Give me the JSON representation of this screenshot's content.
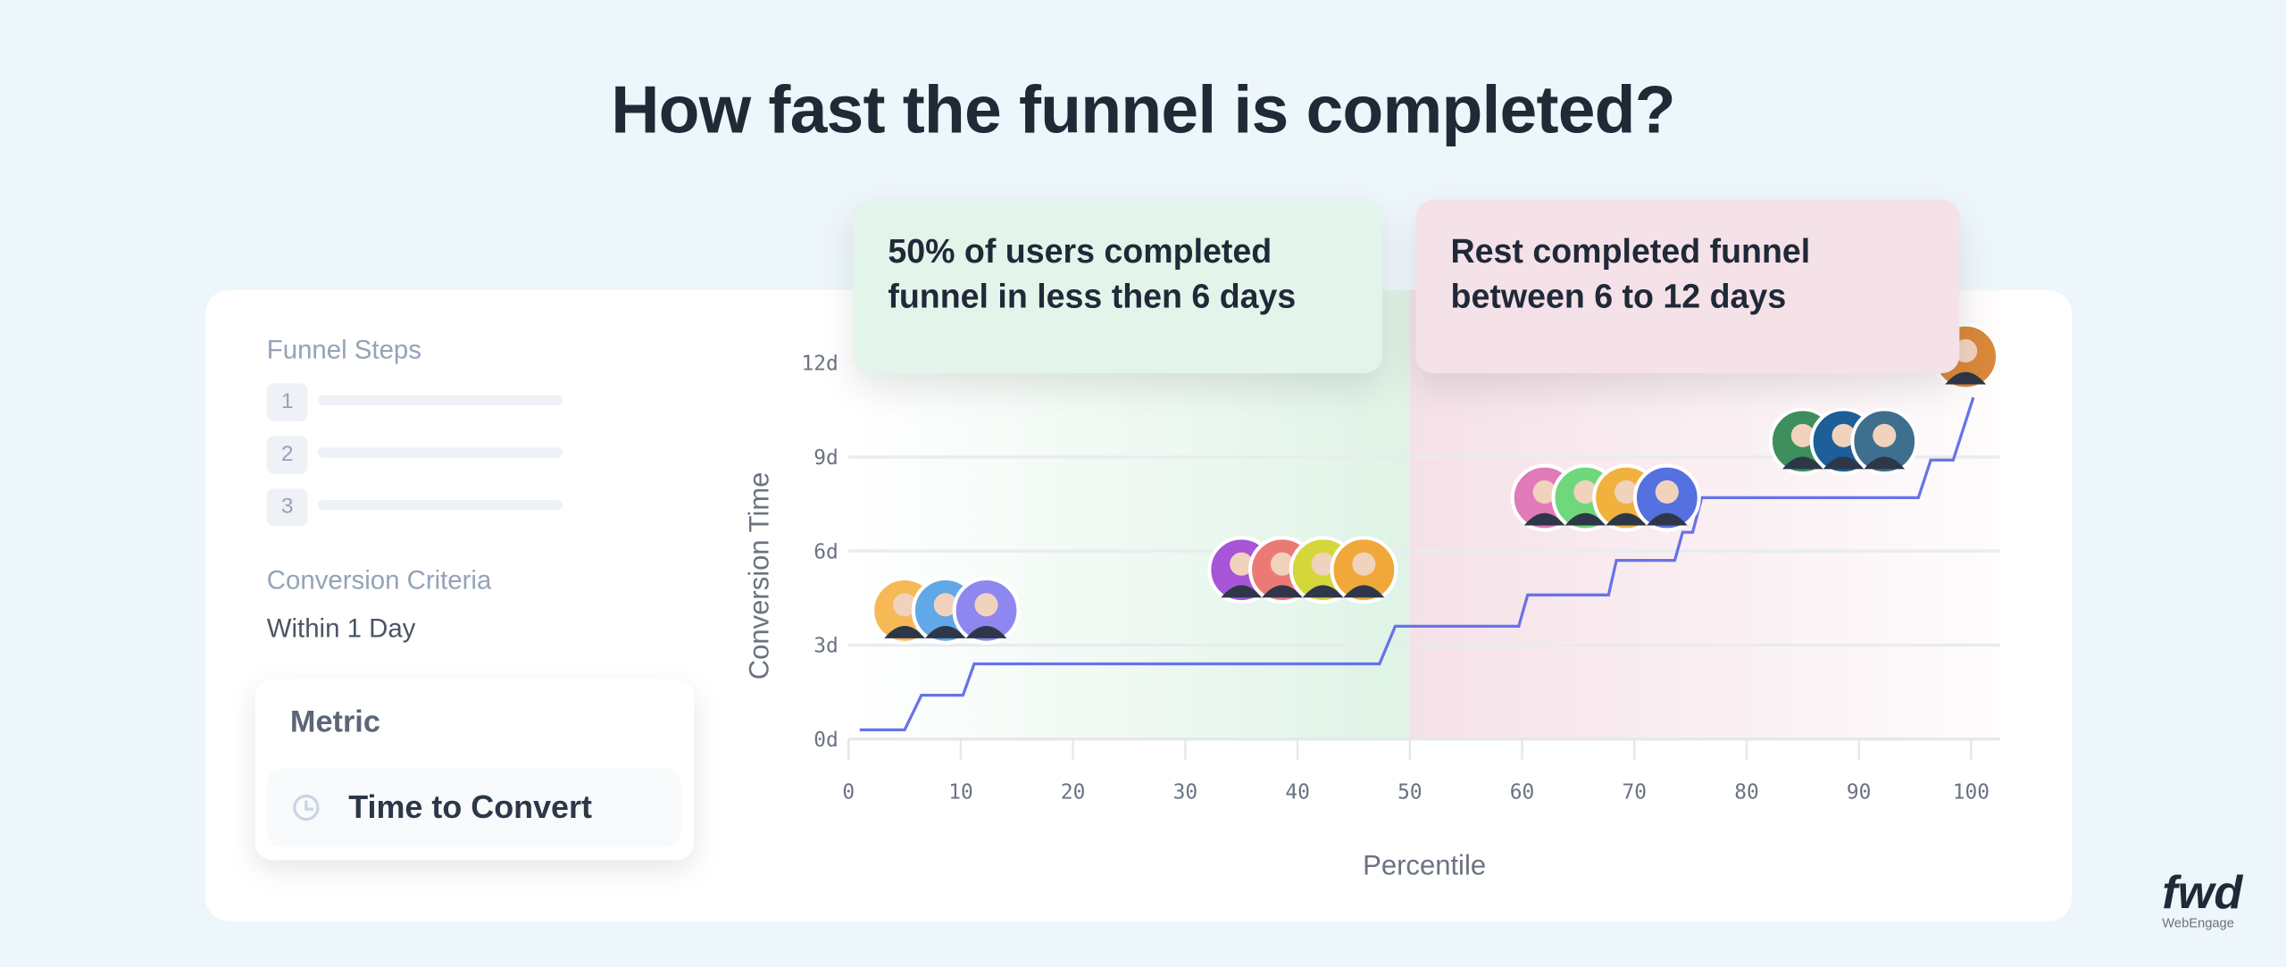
{
  "title": "How fast the funnel is completed?",
  "callouts": [
    {
      "line1": "50% of users completed",
      "line2": "funnel in less then 6 days",
      "color": "#e3f4ea"
    },
    {
      "line1": "Rest completed funnel",
      "line2": "between 6 to 12 days",
      "color": "#f5e1e8"
    }
  ],
  "sidebar": {
    "funnel_steps_label": "Funnel Steps",
    "steps": [
      "1",
      "2",
      "3"
    ],
    "criteria_label": "Conversion Criteria",
    "criteria_value": "Within 1 Day",
    "metric_label": "Metric",
    "metric_value": "Time to Convert",
    "metric_icon": "clock-icon"
  },
  "chart_data": {
    "type": "line",
    "step": true,
    "xlabel": "Percentile",
    "ylabel": "Conversion Time",
    "xlim": [
      0,
      100
    ],
    "ylim": [
      0,
      12
    ],
    "xticks": [
      "0",
      "10",
      "20",
      "30",
      "40",
      "50",
      "60",
      "70",
      "80",
      "90",
      "100"
    ],
    "yticks": [
      "0d",
      "3d",
      "6d",
      "9d",
      "12d"
    ],
    "grid": "horizontal",
    "line_color": "#6773e8",
    "regions": [
      {
        "from": 0,
        "to": 50,
        "color": "#dff3e6"
      },
      {
        "from": 50,
        "to": 100,
        "color": "#f5e1e8"
      }
    ],
    "series": [
      {
        "points": [
          [
            1,
            0.3
          ],
          [
            5,
            0.3
          ],
          [
            6.5,
            1.4
          ],
          [
            10.2,
            1.4
          ],
          [
            11.2,
            2.4
          ],
          [
            47.3,
            2.4
          ],
          [
            48.7,
            3.6
          ],
          [
            59.7,
            3.6
          ],
          [
            60.5,
            4.6
          ],
          [
            67.7,
            4.6
          ],
          [
            68.4,
            5.7
          ],
          [
            73.6,
            5.7
          ],
          [
            74.3,
            6.6
          ],
          [
            75.2,
            6.6
          ],
          [
            76,
            7.7
          ],
          [
            95.3,
            7.7
          ],
          [
            96.4,
            8.9
          ],
          [
            98.4,
            8.9
          ],
          [
            100.2,
            10.9
          ]
        ]
      }
    ],
    "avatar_groups": [
      {
        "x": 5,
        "y": 4.1,
        "colors": [
          "#f7b955",
          "#60a8e8",
          "#8f87f0"
        ]
      },
      {
        "x": 35,
        "y": 5.4,
        "colors": [
          "#a855d8",
          "#ec7a74",
          "#d4d63a",
          "#f0a83a"
        ]
      },
      {
        "x": 62,
        "y": 7.7,
        "colors": [
          "#e07ab8",
          "#6fd87a",
          "#f0b23c",
          "#5570e0"
        ]
      },
      {
        "x": 85,
        "y": 9.5,
        "colors": [
          "#3f8f5e",
          "#1c5f99",
          "#3f6f8f"
        ]
      },
      {
        "x": 99.5,
        "y": 12.2,
        "colors": [
          "#d9883a"
        ]
      }
    ]
  },
  "logo": {
    "text": "fwd",
    "subtext": "WebEngage"
  }
}
